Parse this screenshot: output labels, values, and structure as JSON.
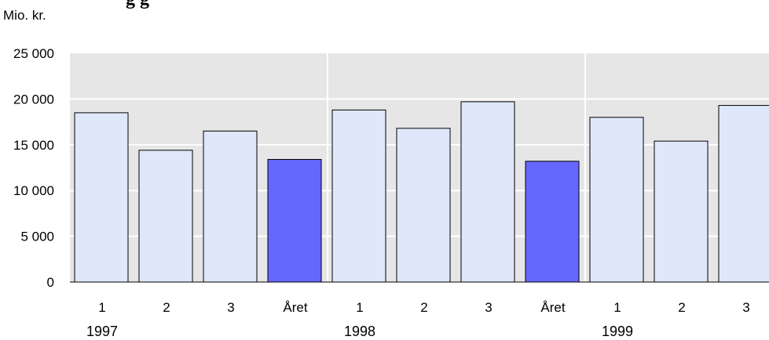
{
  "header": {
    "title_fragment": "g                                        g"
  },
  "chart_data": {
    "type": "bar",
    "ylabel": "Mio. kr.",
    "ylim": [
      0,
      25000
    ],
    "yticks": [
      {
        "value": 0,
        "label": "0"
      },
      {
        "value": 5000,
        "label": "5 000"
      },
      {
        "value": 10000,
        "label": "10 000"
      },
      {
        "value": 15000,
        "label": "15 000"
      },
      {
        "value": 20000,
        "label": "20 000"
      },
      {
        "value": 25000,
        "label": "25 000"
      }
    ],
    "categories": [
      "1",
      "2",
      "3",
      "Året",
      "1",
      "2",
      "3",
      "Året",
      "1",
      "2",
      "3"
    ],
    "groups": [
      "1997",
      "1997",
      "1997",
      "1997",
      "1998",
      "1998",
      "1998",
      "1998",
      "1999",
      "1999",
      "1999"
    ],
    "group_labels": [
      "1997",
      "1998",
      "1999"
    ],
    "values": [
      18500,
      14400,
      16500,
      13400,
      18800,
      16800,
      19700,
      13200,
      18000,
      15400,
      19300
    ],
    "highlight": [
      false,
      false,
      false,
      true,
      false,
      false,
      false,
      true,
      false,
      false,
      false
    ],
    "grid": true,
    "colors": {
      "plot_background": "#e6e6e6",
      "gridline": "#ffffff",
      "bar": "#dfe7fb",
      "bar_highlight": "#6468ff",
      "bar_border": "#000000"
    }
  }
}
